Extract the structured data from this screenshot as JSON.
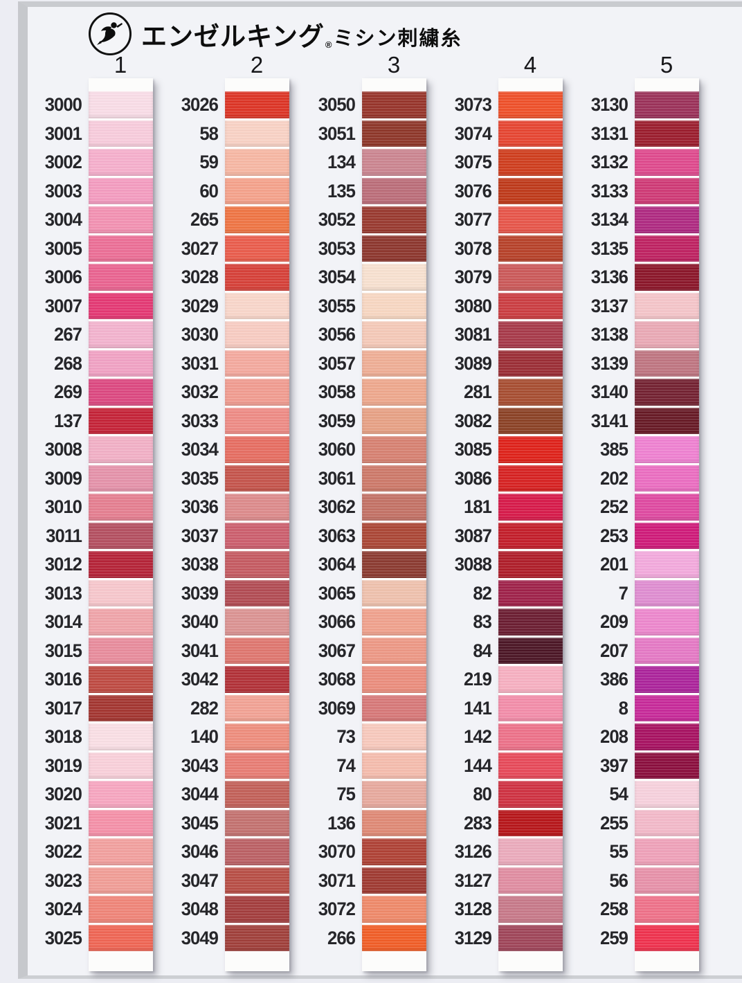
{
  "header": {
    "brand": "エンゼルキング",
    "reg_mark": "®",
    "subtitle": "ミシン刺繍糸",
    "logo": "angel-logo"
  },
  "columns": [
    {
      "index": "1",
      "rows": [
        {
          "code": "3000",
          "color": "#F9DDE7"
        },
        {
          "code": "3001",
          "color": "#F8CCDC"
        },
        {
          "code": "3002",
          "color": "#F6AFCC"
        },
        {
          "code": "3003",
          "color": "#F49CC0"
        },
        {
          "code": "3004",
          "color": "#F391B2"
        },
        {
          "code": "3005",
          "color": "#EC6E96"
        },
        {
          "code": "3006",
          "color": "#EA6390"
        },
        {
          "code": "3007",
          "color": "#E43873"
        },
        {
          "code": "267",
          "color": "#F3B3CE"
        },
        {
          "code": "268",
          "color": "#F1A2C4"
        },
        {
          "code": "269",
          "color": "#DC4880"
        },
        {
          "code": "137",
          "color": "#C52237"
        },
        {
          "code": "3008",
          "color": "#F2B0C6"
        },
        {
          "code": "3009",
          "color": "#E592AA"
        },
        {
          "code": "3010",
          "color": "#E57E90"
        },
        {
          "code": "3011",
          "color": "#B44F60"
        },
        {
          "code": "3012",
          "color": "#B52237"
        },
        {
          "code": "3013",
          "color": "#F7C7CC"
        },
        {
          "code": "3014",
          "color": "#F0A4A9"
        },
        {
          "code": "3015",
          "color": "#E88C9C"
        },
        {
          "code": "3016",
          "color": "#BF4A42"
        },
        {
          "code": "3017",
          "color": "#A33530"
        },
        {
          "code": "3018",
          "color": "#FADFE5"
        },
        {
          "code": "3019",
          "color": "#F9D0DA"
        },
        {
          "code": "3020",
          "color": "#F7A6C0"
        },
        {
          "code": "3021",
          "color": "#F590A8"
        },
        {
          "code": "3022",
          "color": "#F2A09E"
        },
        {
          "code": "3023",
          "color": "#F19D96"
        },
        {
          "code": "3024",
          "color": "#F08478"
        },
        {
          "code": "3025",
          "color": "#EF6554"
        }
      ]
    },
    {
      "index": "2",
      "rows": [
        {
          "code": "3026",
          "color": "#DD3425"
        },
        {
          "code": "58",
          "color": "#F9D2C5"
        },
        {
          "code": "59",
          "color": "#F7B7A3"
        },
        {
          "code": "60",
          "color": "#F5A28B"
        },
        {
          "code": "265",
          "color": "#EF7443"
        },
        {
          "code": "3027",
          "color": "#EA5C4B"
        },
        {
          "code": "3028",
          "color": "#D64038"
        },
        {
          "code": "3029",
          "color": "#F9D6CA"
        },
        {
          "code": "3030",
          "color": "#F8CCC2"
        },
        {
          "code": "3031",
          "color": "#F4A99E"
        },
        {
          "code": "3032",
          "color": "#F19C90"
        },
        {
          "code": "3033",
          "color": "#EE8B85"
        },
        {
          "code": "3034",
          "color": "#E66D61"
        },
        {
          "code": "3035",
          "color": "#C5544B"
        },
        {
          "code": "3036",
          "color": "#DD8A8B"
        },
        {
          "code": "3037",
          "color": "#CC5E6D"
        },
        {
          "code": "3038",
          "color": "#C55A61"
        },
        {
          "code": "3039",
          "color": "#B24B53"
        },
        {
          "code": "3040",
          "color": "#DB9392"
        },
        {
          "code": "3041",
          "color": "#DF766F"
        },
        {
          "code": "3042",
          "color": "#B23037"
        },
        {
          "code": "282",
          "color": "#F2A294"
        },
        {
          "code": "140",
          "color": "#EE8D7D"
        },
        {
          "code": "3043",
          "color": "#E87C73"
        },
        {
          "code": "3044",
          "color": "#C26058"
        },
        {
          "code": "3045",
          "color": "#C3716F"
        },
        {
          "code": "3046",
          "color": "#BB6064"
        },
        {
          "code": "3047",
          "color": "#B84D45"
        },
        {
          "code": "3048",
          "color": "#A33D3D"
        },
        {
          "code": "3049",
          "color": "#A03F3A"
        }
      ]
    },
    {
      "index": "3",
      "rows": [
        {
          "code": "3050",
          "color": "#97342A"
        },
        {
          "code": "3051",
          "color": "#8E3629"
        },
        {
          "code": "134",
          "color": "#CB8590"
        },
        {
          "code": "135",
          "color": "#BB6D79"
        },
        {
          "code": "3052",
          "color": "#99392F"
        },
        {
          "code": "3053",
          "color": "#8D362D"
        },
        {
          "code": "3054",
          "color": "#F8E1D0"
        },
        {
          "code": "3055",
          "color": "#F8D7C2"
        },
        {
          "code": "3056",
          "color": "#F5C9B8"
        },
        {
          "code": "3057",
          "color": "#EFAE95"
        },
        {
          "code": "3058",
          "color": "#EEA88D"
        },
        {
          "code": "3059",
          "color": "#E7A185"
        },
        {
          "code": "3060",
          "color": "#D78171"
        },
        {
          "code": "3061",
          "color": "#CD7969"
        },
        {
          "code": "3062",
          "color": "#C37165"
        },
        {
          "code": "3063",
          "color": "#AB4635"
        },
        {
          "code": "3064",
          "color": "#8B3A30"
        },
        {
          "code": "3065",
          "color": "#EFC1AD"
        },
        {
          "code": "3066",
          "color": "#F0A18D"
        },
        {
          "code": "3067",
          "color": "#ED9885"
        },
        {
          "code": "3068",
          "color": "#EB8D7D"
        },
        {
          "code": "3069",
          "color": "#D77878"
        },
        {
          "code": "73",
          "color": "#F8C9BD"
        },
        {
          "code": "74",
          "color": "#F5BCAD"
        },
        {
          "code": "75",
          "color": "#E7A99D"
        },
        {
          "code": "136",
          "color": "#DF8975"
        },
        {
          "code": "3070",
          "color": "#AF4135"
        },
        {
          "code": "3071",
          "color": "#9F3931"
        },
        {
          "code": "3072",
          "color": "#EF8969"
        },
        {
          "code": "266",
          "color": "#F15D26"
        }
      ]
    },
    {
      "index": "4",
      "rows": [
        {
          "code": "3073",
          "color": "#EF5029"
        },
        {
          "code": "3074",
          "color": "#E64531"
        },
        {
          "code": "3075",
          "color": "#CF3D1D"
        },
        {
          "code": "3076",
          "color": "#BF3919"
        },
        {
          "code": "3077",
          "color": "#E75549"
        },
        {
          "code": "3078",
          "color": "#B74129"
        },
        {
          "code": "3079",
          "color": "#CB5959"
        },
        {
          "code": "3080",
          "color": "#CB3D41"
        },
        {
          "code": "3081",
          "color": "#A73949"
        },
        {
          "code": "3089",
          "color": "#9B2D35"
        },
        {
          "code": "281",
          "color": "#A74D31"
        },
        {
          "code": "3082",
          "color": "#8B4125"
        },
        {
          "code": "3085",
          "color": "#DF2119"
        },
        {
          "code": "3086",
          "color": "#D72121"
        },
        {
          "code": "181",
          "color": "#D71949"
        },
        {
          "code": "3087",
          "color": "#C31D29"
        },
        {
          "code": "3088",
          "color": "#AF1D29"
        },
        {
          "code": "82",
          "color": "#9F2149"
        },
        {
          "code": "83",
          "color": "#6B1D31"
        },
        {
          "code": "84",
          "color": "#4B1525"
        },
        {
          "code": "219",
          "color": "#F7B0C1"
        },
        {
          "code": "141",
          "color": "#F38DA9"
        },
        {
          "code": "142",
          "color": "#ED7189"
        },
        {
          "code": "144",
          "color": "#E74959"
        },
        {
          "code": "80",
          "color": "#CF3141"
        },
        {
          "code": "283",
          "color": "#B71519"
        },
        {
          "code": "3126",
          "color": "#EBABBC"
        },
        {
          "code": "3127",
          "color": "#E08DA1"
        },
        {
          "code": "3128",
          "color": "#C77989"
        },
        {
          "code": "3129",
          "color": "#9F4559"
        }
      ]
    },
    {
      "index": "5",
      "rows": [
        {
          "code": "3130",
          "color": "#9B3159"
        },
        {
          "code": "3131",
          "color": "#9B1D2D"
        },
        {
          "code": "3132",
          "color": "#DF498D"
        },
        {
          "code": "3133",
          "color": "#CF3975"
        },
        {
          "code": "3134",
          "color": "#AF2981"
        },
        {
          "code": "3135",
          "color": "#BF2161"
        },
        {
          "code": "3136",
          "color": "#8B1529"
        },
        {
          "code": "3137",
          "color": "#F5C5C9"
        },
        {
          "code": "3138",
          "color": "#EAA9B5"
        },
        {
          "code": "3139",
          "color": "#BF7581"
        },
        {
          "code": "3140",
          "color": "#732131"
        },
        {
          "code": "3141",
          "color": "#671925"
        },
        {
          "code": "385",
          "color": "#EF81D1"
        },
        {
          "code": "202",
          "color": "#EB6DC1"
        },
        {
          "code": "252",
          "color": "#DF49A1"
        },
        {
          "code": "253",
          "color": "#CF1979"
        },
        {
          "code": "201",
          "color": "#F3A9DD"
        },
        {
          "code": "7",
          "color": "#DF8DD1"
        },
        {
          "code": "209",
          "color": "#ED87CD"
        },
        {
          "code": "207",
          "color": "#E579C5"
        },
        {
          "code": "386",
          "color": "#AC239B"
        },
        {
          "code": "8",
          "color": "#C72999"
        },
        {
          "code": "208",
          "color": "#A71161"
        },
        {
          "code": "397",
          "color": "#8B0D3D"
        },
        {
          "code": "54",
          "color": "#F7D1DD"
        },
        {
          "code": "255",
          "color": "#F3B9C9"
        },
        {
          "code": "55",
          "color": "#EFA1B9"
        },
        {
          "code": "56",
          "color": "#E791A9"
        },
        {
          "code": "258",
          "color": "#EF7189"
        },
        {
          "code": "259",
          "color": "#EF314D"
        }
      ]
    }
  ],
  "layout_colors": {
    "page_background": "#F2F3F7",
    "outer_background": "#ECEDF3",
    "scan_border": "#C6C8CC",
    "card_white": "#FEFEFD"
  }
}
